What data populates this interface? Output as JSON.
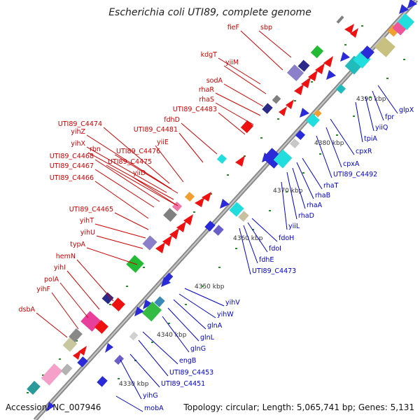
{
  "title": "Escherichia coli UTI89, complete genome",
  "accession": "Accession: NC_007946",
  "topology": "Topology: circular; Length: 5,065,741 bp; Genes: 5,131",
  "colors": {
    "forward_label": "#cc0000",
    "reverse_label": "#0000cc",
    "backbone": "#777777",
    "tick": "#2a8a2a"
  },
  "scale_ticks": [
    "4330 kbp",
    "4340 kbp",
    "4350 kbp",
    "4360 kbp",
    "4370 kbp",
    "4380 kbp",
    "4390 kbp"
  ],
  "forward_genes": [
    "fieF",
    "sbp",
    "kdgT",
    "yiiM",
    "sodA",
    "rhaR",
    "rhaS",
    "UTI89_C4483",
    "fdhD",
    "UTI89_C4474",
    "UTI89_C4481",
    "yihZ",
    "yiiE",
    "yihX",
    "rbn",
    "UTI89_C4476",
    "UTI89_C4468",
    "UTI89_C4475",
    "UTI89_C4467",
    "yiiD",
    "UTI89_C4466",
    "UTI89_C4465",
    "yihT",
    "yihU",
    "typA",
    "hemN",
    "yihI",
    "polA",
    "yihF",
    "dsbA"
  ],
  "reverse_genes": [
    "glpX",
    "fpr",
    "yiiQ",
    "tpiA",
    "cpxR",
    "cpxA",
    "UTI89_C4492",
    "rhaT",
    "rhaB",
    "rhaA",
    "rhaD",
    "yiiL",
    "fdoH",
    "fdoI",
    "fdhE",
    "UTI89_C4473",
    "yihV",
    "yihW",
    "glnA",
    "glnL",
    "glnG",
    "engB",
    "UTI89_C4453",
    "UTI89_C4451",
    "yihG",
    "mobA"
  ]
}
